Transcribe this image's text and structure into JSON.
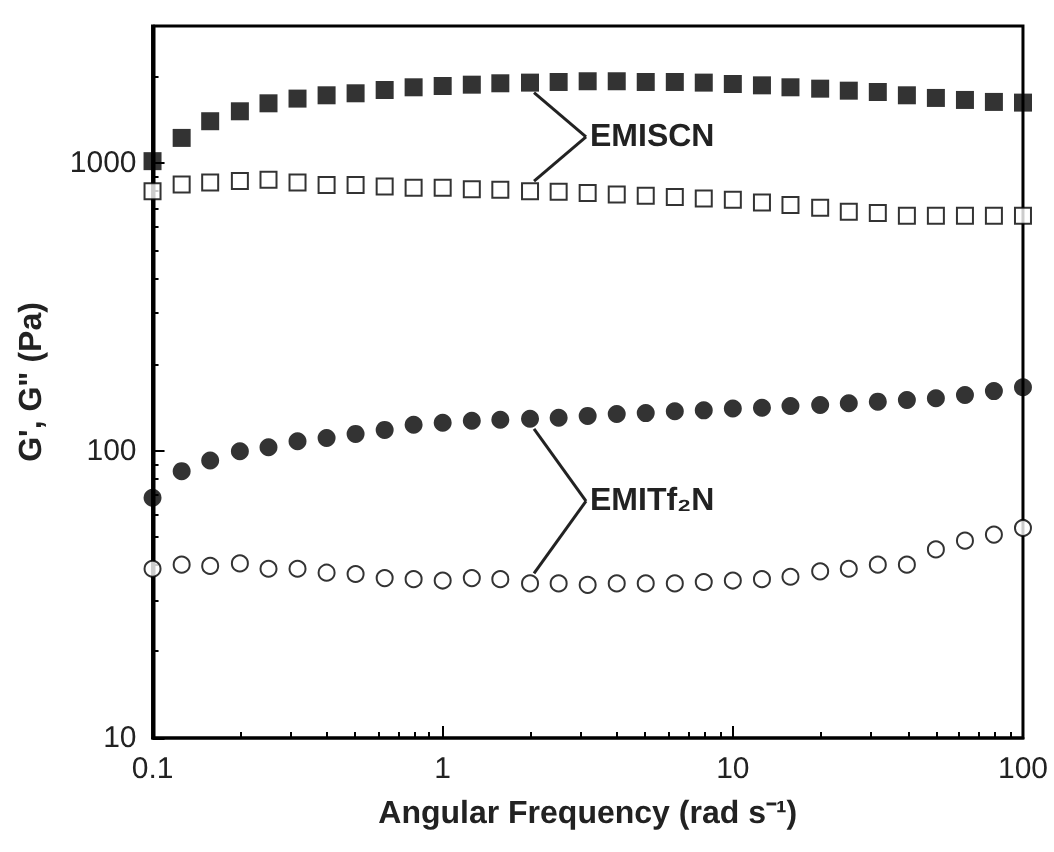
{
  "chart_data": {
    "type": "scatter",
    "xlabel": "Angular Frequency (rad s⁻¹)",
    "ylabel": "G', G\" (Pa)",
    "log": "xy",
    "xlim": [
      0.1,
      100
    ],
    "xticks": [
      0.1,
      1,
      10,
      100
    ],
    "ylim": [
      10,
      3000
    ],
    "yticks": [
      10,
      100,
      1000
    ],
    "grid": false,
    "x": [
      0.1,
      0.126,
      0.158,
      0.2,
      0.251,
      0.316,
      0.398,
      0.501,
      0.631,
      0.794,
      1,
      1.26,
      1.58,
      2,
      2.51,
      3.16,
      3.98,
      5.01,
      6.31,
      7.94,
      10,
      12.6,
      15.8,
      20,
      25.1,
      31.6,
      39.8,
      50.1,
      63.1,
      79.4,
      100
    ],
    "series": [
      {
        "color": "#000000",
        "marker": "square",
        "values": [
          1016,
          1224,
          1399,
          1515,
          1615,
          1677,
          1722,
          1750,
          1797,
          1836,
          1855,
          1875,
          1896,
          1906,
          1916,
          1927,
          1927,
          1916,
          1916,
          1906,
          1885,
          1865,
          1836,
          1816,
          1787,
          1768,
          1722,
          1686,
          1659,
          1633,
          1624
        ]
      },
      {
        "color": "#000000",
        "marker": "square",
        "values": [
          799,
          843,
          857,
          866,
          875,
          857,
          839,
          839,
          830,
          821,
          821,
          812,
          808,
          799,
          795,
          787,
          778,
          770,
          762,
          754,
          746,
          730,
          715,
          700,
          678,
          671,
          656,
          656,
          656,
          656,
          656
        ]
      },
      {
        "color": "#000000",
        "marker": "circle",
        "values": [
          68.5,
          84.8,
          92.3,
          99.5,
          102.7,
          107.7,
          110.6,
          114.3,
          118,
          123,
          125,
          127,
          128,
          129,
          130,
          132,
          134,
          135,
          137,
          138,
          140,
          141,
          143,
          144,
          146,
          148,
          150,
          152,
          156,
          161,
          166
        ]
      },
      {
        "color": "#000000",
        "marker": "circle",
        "values": [
          38.8,
          40.1,
          39.7,
          40.5,
          38.8,
          38.8,
          37.6,
          37.2,
          36.0,
          35.7,
          35.3,
          36.0,
          35.7,
          34.5,
          34.5,
          34.1,
          34.5,
          34.5,
          34.5,
          34.9,
          35.3,
          35.7,
          36.4,
          38.0,
          38.8,
          40.1,
          40.1,
          45.3,
          48.6,
          51.0,
          53.8
        ]
      }
    ],
    "annotations": [
      {
        "text": "EMISCN",
        "x": 2,
        "y": 1906
      },
      {
        "text": "EMITf₂N",
        "x": 2,
        "y": 129
      }
    ]
  }
}
